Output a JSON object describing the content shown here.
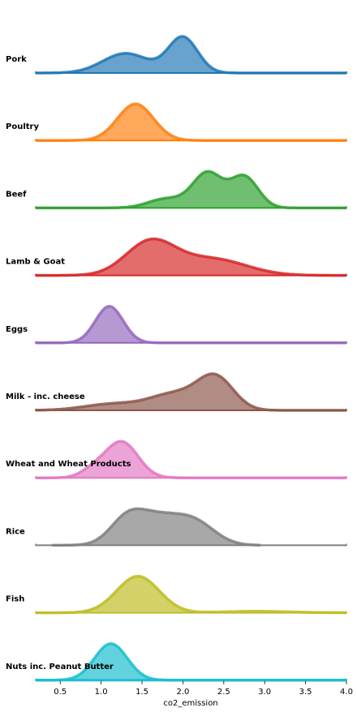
{
  "chart_data": {
    "type": "ridgeline",
    "xlabel": "co2_emission",
    "xlim": [
      0.2,
      4.0
    ],
    "xticks": [
      "0.5",
      "1.0",
      "1.5",
      "2.0",
      "2.5",
      "3.0",
      "3.5",
      "4.0"
    ],
    "xtick_values": [
      0.5,
      1.0,
      1.5,
      2.0,
      2.5,
      3.0,
      3.5,
      4.0
    ],
    "series": [
      {
        "name": "Pork",
        "color": "#1f77b4",
        "components": [
          [
            1.3,
            0.28,
            0.55
          ],
          [
            2.0,
            0.18,
            1.0
          ]
        ],
        "extent": [
          0.2,
          4.0
        ]
      },
      {
        "name": "Poultry",
        "color": "#ff7f0e",
        "components": [
          [
            1.42,
            0.22,
            1.0
          ]
        ],
        "extent": [
          0.2,
          4.0
        ]
      },
      {
        "name": "Beef",
        "color": "#2ca02c",
        "components": [
          [
            1.8,
            0.22,
            0.25
          ],
          [
            2.3,
            0.18,
            0.95
          ],
          [
            2.75,
            0.17,
            0.85
          ]
        ],
        "extent": [
          0.2,
          4.0
        ]
      },
      {
        "name": "Lamb & Goat",
        "color": "#d62728",
        "components": [
          [
            1.6,
            0.3,
            1.0
          ],
          [
            2.35,
            0.42,
            0.5
          ]
        ],
        "extent": [
          0.2,
          4.0
        ]
      },
      {
        "name": "Eggs",
        "color": "#9467bd",
        "components": [
          [
            1.1,
            0.17,
            1.0
          ]
        ],
        "extent": [
          0.2,
          4.0
        ]
      },
      {
        "name": "Milk - inc. cheese",
        "color": "#8c564b",
        "components": [
          [
            1.15,
            0.35,
            0.18
          ],
          [
            1.9,
            0.3,
            0.45
          ],
          [
            2.4,
            0.22,
            0.9
          ]
        ],
        "extent": [
          0.2,
          4.0
        ]
      },
      {
        "name": "Wheat and Wheat Products",
        "color": "#e377c2",
        "components": [
          [
            1.25,
            0.2,
            1.0
          ],
          [
            0.9,
            0.15,
            0.2
          ]
        ],
        "extent": [
          0.2,
          4.0
        ]
      },
      {
        "name": "Rice",
        "color": "#7f7f7f",
        "components": [
          [
            1.3,
            0.2,
            0.55
          ],
          [
            1.65,
            0.3,
            0.8
          ],
          [
            2.15,
            0.25,
            0.6
          ]
        ],
        "extent": [
          0.4,
          2.95
        ]
      },
      {
        "name": "Fish",
        "color": "#bcbd22",
        "components": [
          [
            1.45,
            0.26,
            1.0
          ],
          [
            2.9,
            0.4,
            0.04
          ]
        ],
        "extent": [
          0.2,
          4.0
        ]
      },
      {
        "name": "Nuts inc. Peanut Butter",
        "color": "#17becf",
        "components": [
          [
            1.12,
            0.2,
            1.0
          ]
        ],
        "extent": [
          0.2,
          4.0
        ]
      }
    ]
  }
}
